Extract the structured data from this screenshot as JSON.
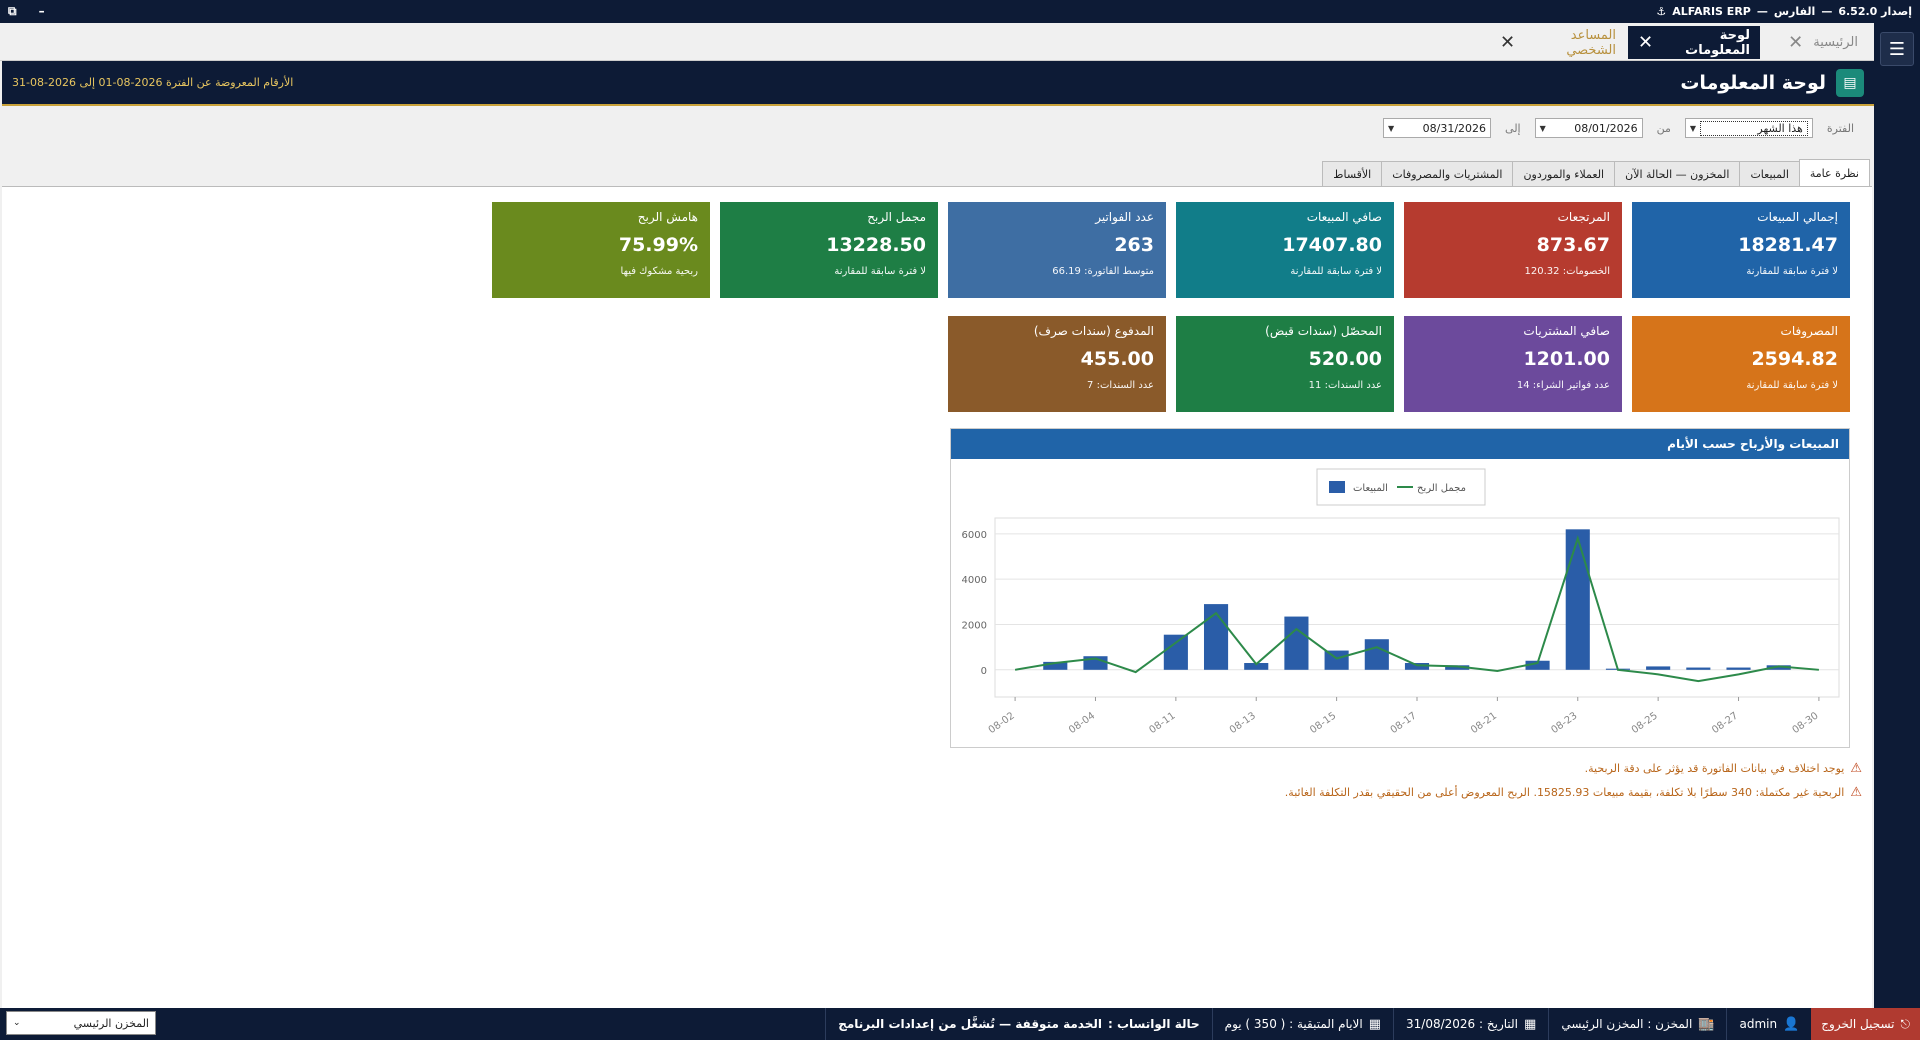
{
  "app": {
    "name": "ALFARIS ERP",
    "edition": "الفارس",
    "version_label": "إصدار 6.52.0"
  },
  "window_controls": {
    "restore": "⧉",
    "minimize": "–"
  },
  "tabs": [
    {
      "label": "الرئيسية"
    },
    {
      "label": "لوحة المعلومات"
    },
    {
      "label": "المساعد الشخصي"
    }
  ],
  "header": {
    "title": "لوحة المعلومات",
    "range_text": "الأرقام المعروضة عن الفترة 2026-08-01 إلى 2026-08-31"
  },
  "filter": {
    "period_label": "الفترة",
    "period_value": "هذا الشهر",
    "from_label": "من",
    "from_value": "08/01/2026",
    "to_label": "إلى",
    "to_value": "08/31/2026"
  },
  "section_tabs": [
    "نظرة عامة",
    "المبيعات",
    "المخزون — الحالة الآن",
    "العملاء والموردون",
    "المشتريات والمصروفات",
    "الأقساط"
  ],
  "cards_row1": [
    {
      "label": "إجمالي المبيعات",
      "value": "18281.47",
      "sub": "لا فترة سابقة للمقارنة",
      "color": "#2064a8"
    },
    {
      "label": "المرتجعات",
      "value": "873.67",
      "sub": "الخصومات: 120.32",
      "color": "#b63b2f"
    },
    {
      "label": "صافي المبيعات",
      "value": "17407.80",
      "sub": "لا فترة سابقة للمقارنة",
      "color": "#117d89"
    },
    {
      "label": "عدد الفواتير",
      "value": "263",
      "sub": "متوسط الفاتورة: 66.19",
      "color": "#3e6ea3"
    },
    {
      "label": "مجمل الربح",
      "value": "13228.50",
      "sub": "لا فترة سابقة للمقارنة",
      "color": "#1e7e45"
    },
    {
      "label": "هامش الربح",
      "value": "75.99%",
      "sub": "ربحية مشكوك فيها",
      "color": "#6a8a1e"
    }
  ],
  "cards_row2": [
    {
      "label": "المصروفات",
      "value": "2594.82",
      "sub": "لا فترة سابقة للمقارنة",
      "color": "#d6741a"
    },
    {
      "label": "صافي المشتريات",
      "value": "1201.00",
      "sub": "عدد فواتير الشراء: 14",
      "color": "#6c4a9c"
    },
    {
      "label": "المحصّل (سندات قبض)",
      "value": "520.00",
      "sub": "عدد السندات: 11",
      "color": "#1e7e45"
    },
    {
      "label": "المدفوع (سندات صرف)",
      "value": "455.00",
      "sub": "عدد السندات: 7",
      "color": "#8a5a2a"
    }
  ],
  "chart_data": {
    "type": "bar",
    "title": "المبيعات والأرباح حسب الأيام",
    "legend": [
      "المبيعات",
      "مجمل الربح"
    ],
    "legend_position": "top-center",
    "x_tick_labels": [
      "08-02",
      "08-04",
      "08-11",
      "08-13",
      "08-15",
      "08-17",
      "08-21",
      "08-23",
      "08-25",
      "08-27",
      "08-30"
    ],
    "y_ticks": [
      0,
      2000,
      4000,
      6000
    ],
    "ylim": [
      -1200,
      6700
    ],
    "grid": true,
    "categories": [
      "08-02",
      "08-03",
      "08-04",
      "08-10",
      "08-11",
      "08-12",
      "08-13",
      "08-14",
      "08-15",
      "08-16",
      "08-17",
      "08-18",
      "08-21",
      "08-22",
      "08-23",
      "08-24",
      "08-25",
      "08-26",
      "08-27",
      "08-29",
      "08-30"
    ],
    "series": [
      {
        "name": "المبيعات",
        "kind": "bar",
        "color": "#2a5da8",
        "values": [
          0,
          350,
          600,
          0,
          1550,
          2900,
          300,
          2350,
          850,
          1350,
          300,
          200,
          0,
          400,
          6200,
          50,
          150,
          100,
          100,
          200,
          0
        ]
      },
      {
        "name": "مجمل الربح",
        "kind": "line",
        "color": "#2d8a4a",
        "values": [
          0,
          300,
          500,
          -100,
          1200,
          2500,
          250,
          1800,
          500,
          1000,
          200,
          150,
          -50,
          300,
          5800,
          0,
          -200,
          -500,
          -200,
          150,
          0
        ]
      }
    ]
  },
  "warnings": [
    "يوجد اختلاف في بيانات الفاتورة قد يؤثر على دقة الربحية.",
    "الربحية غير مكتملة: 340 سطرًا بلا تكلفة، بقيمة مبيعات 15825.93. الربح المعروض أعلى من الحقيقي بقدر التكلفة الغائبة."
  ],
  "statusbar": {
    "logout": "تسجيل الخروج",
    "user": "admin",
    "warehouse": "المخزن : المخزن الرئيسي",
    "date": "التاريخ : 31/08/2026",
    "remaining_days": "الايام المتبقية : ( 350 ) يوم",
    "whatsapp_label": "حالة الواتساب :",
    "whatsapp_status": "الخدمة متوقفة — تُشغَّل من إعدادات البرنامج"
  },
  "warehouse_selector": {
    "value": "المخزن الرئيسي"
  }
}
